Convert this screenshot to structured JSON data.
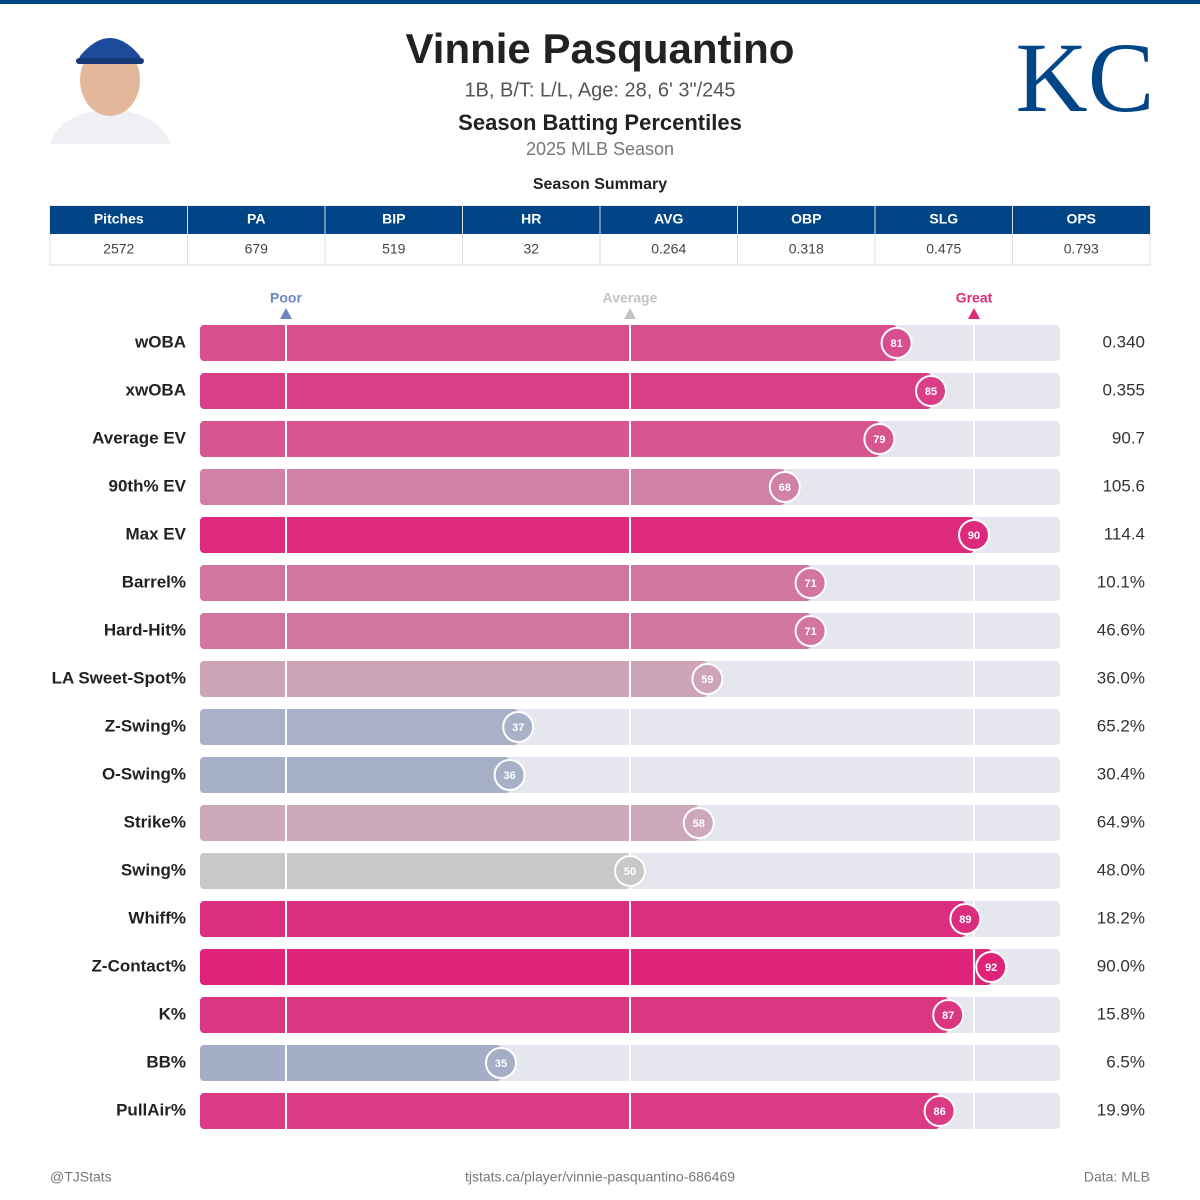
{
  "header": {
    "name": "Vinnie Pasquantino",
    "bio": "1B, B/T: L/L, Age: 28, 6' 3\"/245",
    "subtitle": "Season Batting Percentiles",
    "season": "2025 MLB Season",
    "team_logo": "KC"
  },
  "summary": {
    "title": "Season Summary",
    "columns": [
      "Pitches",
      "PA",
      "BIP",
      "HR",
      "AVG",
      "OBP",
      "SLG",
      "OPS"
    ],
    "rows": [
      [
        "2572",
        "679",
        "519",
        "32",
        "0.264",
        "0.318",
        "0.475",
        "0.793"
      ]
    ]
  },
  "chart_data": {
    "type": "percentile-bar",
    "categories": [
      "wOBA",
      "xwOBA",
      "Average EV",
      "90th% EV",
      "Max EV",
      "Barrel%",
      "Hard-Hit%",
      "LA Sweet-Spot%",
      "Z-Swing%",
      "O-Swing%",
      "Strike%",
      "Swing%",
      "Whiff%",
      "Z-Contact%",
      "K%",
      "BB%",
      "PullAir%"
    ],
    "values": [
      81,
      85,
      79,
      68,
      90,
      71,
      71,
      59,
      37,
      36,
      58,
      50,
      89,
      92,
      87,
      35,
      86
    ],
    "stat_labels": [
      "0.340",
      "0.355",
      "90.7",
      "105.6",
      "114.4",
      "10.1%",
      "46.6%",
      "36.0%",
      "65.2%",
      "30.4%",
      "64.9%",
      "48.0%",
      "18.2%",
      "90.0%",
      "15.8%",
      "6.5%",
      "19.9%"
    ],
    "xlim": [
      0,
      100
    ],
    "reference_lines": [
      {
        "value": 10,
        "label": "Poor",
        "color": "#6b84c4"
      },
      {
        "value": 50,
        "label": "Average",
        "color": "#c4c4c4"
      },
      {
        "value": 90,
        "label": "Great",
        "color": "#dd2a7b"
      }
    ],
    "color_scale": [
      "#5071c1",
      "#c8c8c8",
      "#e2036a"
    ],
    "track_color": "#e6e6ee"
  },
  "footer": {
    "left": "@TJStats",
    "center": "tjstats.ca/player/vinnie-pasquantino-686469",
    "right": "Data: MLB"
  }
}
